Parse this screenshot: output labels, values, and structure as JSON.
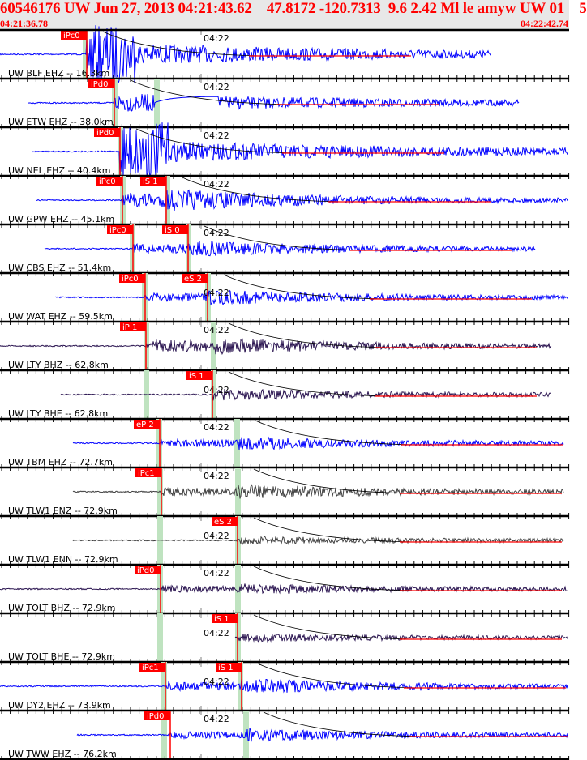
{
  "header": {
    "title": "60546176 UW Jun 27, 2013 04:21:43.62    47.8172 -120.7313  9.6 2.42 Ml le amyw UW 01    5",
    "start_time": "04:21:36.78",
    "end_time": "04:22:42.74"
  },
  "minute_label": "04:22",
  "colors": {
    "text_red": "#ff0000",
    "header_bg": "#e8e8e8",
    "pick": "#ff0000",
    "window": "#bfe3c0",
    "blue": "#0000ff",
    "purple": "#2a1450",
    "gray": "#404040"
  },
  "traces": [
    {
      "label": "UW BLF EHZ -- 16.3km",
      "picks": [
        "iPc0"
      ],
      "color": "blue"
    },
    {
      "label": "UW ETW EHZ -- 38.0km",
      "picks": [
        "iPd0"
      ],
      "color": "blue"
    },
    {
      "label": "UW NEL EHZ -- 40.4km",
      "picks": [
        "iPd0"
      ],
      "color": "blue"
    },
    {
      "label": "UW GPW EHZ -- 45.1km",
      "picks": [
        "iPc0",
        "iS 1"
      ],
      "color": "blue"
    },
    {
      "label": "UW CBS EHZ -- 51.4km",
      "picks": [
        "iPc0",
        "iS 0"
      ],
      "color": "blue"
    },
    {
      "label": "UW WAT EHZ -- 59.5km",
      "picks": [
        "iPc0",
        "eS 2"
      ],
      "color": "blue"
    },
    {
      "label": "UW LTY BHZ -- 62.8km",
      "picks": [
        "iP 1"
      ],
      "color": "purple"
    },
    {
      "label": "UW LTY BHE -- 62.8km",
      "picks": [
        "iS 1"
      ],
      "color": "purple"
    },
    {
      "label": "UW TBM EHZ -- 72.7km",
      "picks": [
        "eP 2"
      ],
      "color": "blue"
    },
    {
      "label": "UW TLW1 ENZ -- 72.9km",
      "picks": [
        "iPc1"
      ],
      "color": "gray"
    },
    {
      "label": "UW TLW1 ENN -- 72.9km",
      "picks": [
        "eS 2"
      ],
      "color": "gray"
    },
    {
      "label": "UW TOLT BHZ -- 72.9km",
      "picks": [
        "iPd0"
      ],
      "color": "purple"
    },
    {
      "label": "UW TOLT BHE -- 72.9km",
      "picks": [
        "iS 1"
      ],
      "color": "purple"
    },
    {
      "label": "UW DY2 EHZ -- 73.9km",
      "picks": [
        "iPc1",
        "iS 1"
      ],
      "color": "blue"
    },
    {
      "label": "UW TWW EHZ -- 76.2km",
      "picks": [
        "iPd0"
      ],
      "color": "blue"
    }
  ]
}
